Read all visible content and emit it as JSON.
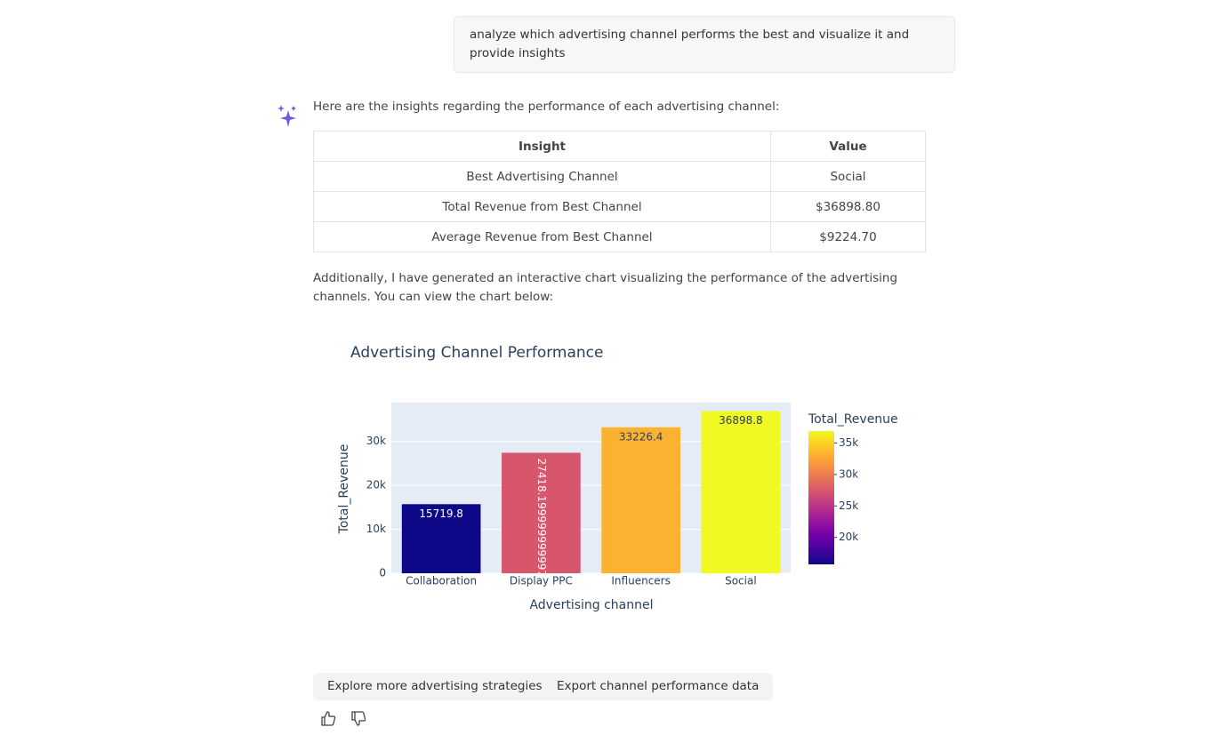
{
  "user_message": "analyze which advertising channel performs the best and visualize it and provide insights",
  "intro": "Here are the insights regarding the performance of each advertising channel:",
  "table": {
    "headers": [
      "Insight",
      "Value"
    ],
    "rows": [
      [
        "Best Advertising Channel",
        "Social"
      ],
      [
        "Total Revenue from Best Channel",
        "$36898.80"
      ],
      [
        "Average Revenue from Best Channel",
        "$9224.70"
      ]
    ]
  },
  "paragraph": "Additionally, I have generated an interactive chart visualizing the performance of the advertising channels. You can view the chart below:",
  "chart_data": {
    "type": "bar",
    "title": "Advertising Channel Performance",
    "x_label": "Advertising channel",
    "y_label": "Total_Revenue",
    "categories": [
      "Collaboration",
      "Display PPC",
      "Influencers",
      "Social"
    ],
    "values": [
      15719.8,
      27418.199999999997,
      33226.4,
      36898.8
    ],
    "ylim": [
      0,
      38840
    ],
    "yticks": [
      0,
      {
        "value": 10000,
        "label": "10k"
      },
      {
        "value": 20000,
        "label": "20k"
      },
      {
        "value": 30000,
        "label": "30k"
      }
    ],
    "grid": true,
    "colorscale": [
      "#0d0887",
      "#46039f",
      "#7201a8",
      "#9c179e",
      "#bd3786",
      "#d8576b",
      "#ed7953",
      "#fb9f3a",
      "#fdca26",
      "#f0f921"
    ],
    "colorbar": {
      "title": "Total_Revenue",
      "range": [
        15719.8,
        36898.8
      ],
      "ticks": [
        {
          "value": 20000,
          "label": "20k"
        },
        {
          "value": 25000,
          "label": "25k"
        },
        {
          "value": 30000,
          "label": "30k"
        },
        {
          "value": 35000,
          "label": "35k"
        }
      ]
    }
  },
  "suggestions": [
    "Explore more advertising strategies",
    "Export channel performance data"
  ]
}
